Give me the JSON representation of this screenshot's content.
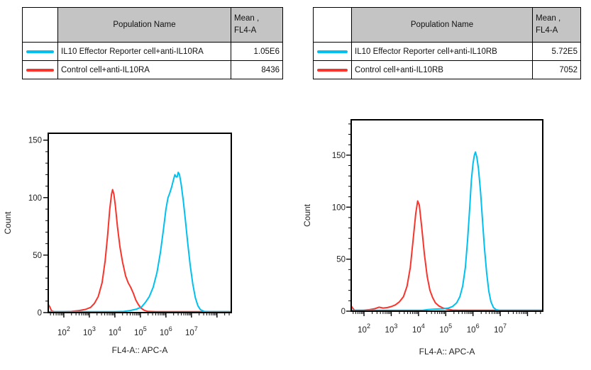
{
  "figure": {
    "background": "#ffffff",
    "description_colors": {
      "reporter_cyan": "#00c0f0",
      "control_red": "#f8352c",
      "table_header_gray": "#c4c4c4"
    }
  },
  "tables": [
    {
      "headers": {
        "population": "Population Name",
        "mean_line1": "Mean ,",
        "mean_line2": "FL4-A"
      },
      "rows": [
        {
          "color": "#00c0f0",
          "name": "IL10 Effector Reporter cell+anti-IL10RA",
          "mean": "1.05E6"
        },
        {
          "color": "#f8352c",
          "name": "Control cell+anti-IL10RA",
          "mean": "8436"
        }
      ]
    },
    {
      "headers": {
        "population": "Population Name",
        "mean_line1": "Mean ,",
        "mean_line2": "FL4-A"
      },
      "rows": [
        {
          "color": "#00c0f0",
          "name": "IL10 Effector Reporter cell+anti-IL10RB",
          "mean": "5.72E5"
        },
        {
          "color": "#f8352c",
          "name": "Control cell+anti-IL10RB",
          "mean": "7052"
        }
      ]
    }
  ],
  "chart_data": [
    {
      "type": "line",
      "subtype": "flow-cytometry-histogram-overlay",
      "title": "",
      "xlabel": "FL4-A:: APC-A",
      "ylabel": "Count",
      "x_scale": "log10",
      "x_domain_log10": [
        1.39,
        8.56
      ],
      "x_major_tick_exponents": [
        2,
        3,
        4,
        5,
        6,
        7,
        8
      ],
      "x_labeled_tick_exponents": [
        2,
        3,
        4,
        5,
        6,
        7
      ],
      "ylim": [
        0,
        156
      ],
      "y_major_ticks": [
        0,
        50,
        100,
        150
      ],
      "y_minor_tick_step": 10,
      "grid": false,
      "legend": "stats-table-above",
      "series": [
        {
          "name": "IL10 Effector Reporter cell+anti-IL10RA",
          "color": "#00c0f0",
          "mean_fl4a": "1.05E6",
          "peak": {
            "x": 3000000.0,
            "count": 122
          },
          "points_log10x_count": [
            [
              1.39,
              0.8
            ],
            [
              2.2,
              0.8
            ],
            [
              3.2,
              0.8
            ],
            [
              4.0,
              0.8
            ],
            [
              4.35,
              1
            ],
            [
              4.6,
              1.8
            ],
            [
              4.85,
              3
            ],
            [
              5.05,
              5
            ],
            [
              5.2,
              9
            ],
            [
              5.35,
              14
            ],
            [
              5.5,
              22
            ],
            [
              5.65,
              35
            ],
            [
              5.78,
              52
            ],
            [
              5.9,
              72
            ],
            [
              6.0,
              90
            ],
            [
              6.08,
              100
            ],
            [
              6.15,
              104
            ],
            [
              6.22,
              109
            ],
            [
              6.3,
              116
            ],
            [
              6.35,
              120
            ],
            [
              6.4,
              118
            ],
            [
              6.44,
              118
            ],
            [
              6.48,
              122
            ],
            [
              6.53,
              120
            ],
            [
              6.6,
              111
            ],
            [
              6.68,
              97
            ],
            [
              6.76,
              81
            ],
            [
              6.85,
              61
            ],
            [
              6.95,
              41
            ],
            [
              7.05,
              25
            ],
            [
              7.15,
              13
            ],
            [
              7.25,
              6
            ],
            [
              7.35,
              2.5
            ],
            [
              7.5,
              1
            ],
            [
              7.7,
              0.8
            ],
            [
              8.1,
              0.8
            ],
            [
              8.56,
              0.8
            ]
          ]
        },
        {
          "name": "Control cell+anti-IL10RA",
          "color": "#f8352c",
          "mean_fl4a": "8436",
          "peak": {
            "x": 8100,
            "count": 107
          },
          "points_log10x_count": [
            [
              1.39,
              7
            ],
            [
              1.45,
              5
            ],
            [
              1.52,
              1.5
            ],
            [
              1.62,
              0.8
            ],
            [
              2.0,
              0.8
            ],
            [
              2.3,
              1
            ],
            [
              2.6,
              1.8
            ],
            [
              2.85,
              2.8
            ],
            [
              3.05,
              4.5
            ],
            [
              3.2,
              8
            ],
            [
              3.35,
              14
            ],
            [
              3.5,
              26
            ],
            [
              3.62,
              45
            ],
            [
              3.72,
              68
            ],
            [
              3.8,
              90
            ],
            [
              3.87,
              103
            ],
            [
              3.91,
              107
            ],
            [
              3.96,
              103
            ],
            [
              4.02,
              93
            ],
            [
              4.1,
              75
            ],
            [
              4.2,
              57
            ],
            [
              4.3,
              44
            ],
            [
              4.42,
              32
            ],
            [
              4.52,
              26
            ],
            [
              4.62,
              22
            ],
            [
              4.72,
              17
            ],
            [
              4.82,
              11
            ],
            [
              4.92,
              7
            ],
            [
              5.02,
              4
            ],
            [
              5.15,
              2
            ],
            [
              5.3,
              1
            ],
            [
              5.6,
              0.8
            ],
            [
              6.2,
              0.8
            ],
            [
              7.0,
              0.8
            ],
            [
              7.8,
              0.8
            ],
            [
              8.56,
              0.8
            ]
          ]
        }
      ]
    },
    {
      "type": "line",
      "subtype": "flow-cytometry-histogram-overlay",
      "title": "",
      "xlabel": "FL4-A:: APC-A",
      "ylabel": "Count",
      "x_scale": "log10",
      "x_domain_log10": [
        1.53,
        8.56
      ],
      "x_major_tick_exponents": [
        2,
        3,
        4,
        5,
        6,
        7,
        8
      ],
      "x_labeled_tick_exponents": [
        2,
        3,
        4,
        5,
        6,
        7
      ],
      "ylim": [
        0,
        184
      ],
      "y_major_ticks": [
        0,
        50,
        100,
        150
      ],
      "y_minor_tick_step": 10,
      "grid": false,
      "legend": "stats-table-above",
      "series": [
        {
          "name": "IL10 Effector Reporter cell+anti-IL10RB",
          "color": "#00c0f0",
          "mean_fl4a": "5.72E5",
          "peak": {
            "x": 1200000.0,
            "count": 153
          },
          "points_log10x_count": [
            [
              1.53,
              0.8
            ],
            [
              2.6,
              0.8
            ],
            [
              3.6,
              0.8
            ],
            [
              4.15,
              0.8
            ],
            [
              4.35,
              1.5
            ],
            [
              4.6,
              2
            ],
            [
              4.9,
              2.2
            ],
            [
              5.1,
              3
            ],
            [
              5.25,
              4.5
            ],
            [
              5.4,
              8
            ],
            [
              5.52,
              14
            ],
            [
              5.62,
              24
            ],
            [
              5.72,
              42
            ],
            [
              5.8,
              68
            ],
            [
              5.88,
              100
            ],
            [
              5.94,
              126
            ],
            [
              6.0,
              142
            ],
            [
              6.05,
              150
            ],
            [
              6.09,
              153
            ],
            [
              6.14,
              148
            ],
            [
              6.2,
              137
            ],
            [
              6.28,
              114
            ],
            [
              6.35,
              87
            ],
            [
              6.42,
              61
            ],
            [
              6.5,
              37
            ],
            [
              6.58,
              19
            ],
            [
              6.66,
              9
            ],
            [
              6.75,
              3.5
            ],
            [
              6.85,
              1.5
            ],
            [
              7.0,
              0.8
            ],
            [
              7.4,
              0.8
            ],
            [
              7.9,
              0.8
            ],
            [
              8.56,
              0.8
            ]
          ]
        },
        {
          "name": "Control cell+anti-IL10RB",
          "color": "#f8352c",
          "mean_fl4a": "7052",
          "peak": {
            "x": 9300,
            "count": 106
          },
          "points_log10x_count": [
            [
              1.53,
              5
            ],
            [
              1.58,
              3
            ],
            [
              1.66,
              0.8
            ],
            [
              1.95,
              0.8
            ],
            [
              2.2,
              1.4
            ],
            [
              2.4,
              2.4
            ],
            [
              2.55,
              3.8
            ],
            [
              2.7,
              3
            ],
            [
              2.85,
              3.4
            ],
            [
              3.0,
              4.4
            ],
            [
              3.15,
              6
            ],
            [
              3.3,
              9
            ],
            [
              3.45,
              14
            ],
            [
              3.58,
              24
            ],
            [
              3.7,
              42
            ],
            [
              3.8,
              68
            ],
            [
              3.9,
              94
            ],
            [
              3.97,
              106
            ],
            [
              4.03,
              102
            ],
            [
              4.12,
              80
            ],
            [
              4.22,
              54
            ],
            [
              4.32,
              33
            ],
            [
              4.42,
              20
            ],
            [
              4.52,
              13
            ],
            [
              4.62,
              8
            ],
            [
              4.75,
              5
            ],
            [
              4.9,
              3
            ],
            [
              5.05,
              2
            ],
            [
              5.25,
              1
            ],
            [
              5.5,
              0.8
            ],
            [
              6.1,
              0.8
            ],
            [
              6.9,
              0.8
            ],
            [
              7.7,
              0.8
            ],
            [
              8.56,
              0.8
            ]
          ]
        }
      ]
    }
  ]
}
